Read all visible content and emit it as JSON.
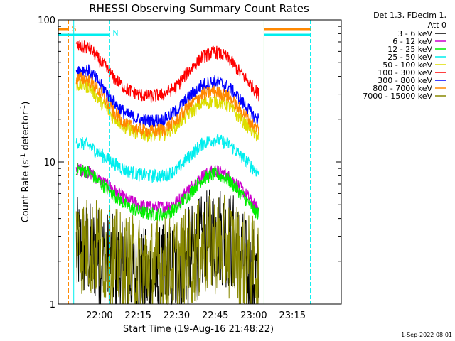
{
  "chart_data": {
    "type": "line",
    "title": "RHESSI Observing Summary Count Rates",
    "xlabel": "Start Time (19-Aug-16 21:48:22)",
    "ylabel_main": "Count Rate (s",
    "ylabel_exp1": "-1",
    "ylabel_mid": " detector",
    "ylabel_exp2": "-1",
    "ylabel_end": ")",
    "yscale": "log",
    "ylim": [
      1,
      100
    ],
    "xlim_minutes": [
      -16,
      94
    ],
    "xticks": [
      {
        "m": 0,
        "label": "22:00"
      },
      {
        "m": 15,
        "label": "22:15"
      },
      {
        "m": 30,
        "label": "22:30"
      },
      {
        "m": 45,
        "label": "22:45"
      },
      {
        "m": 60,
        "label": "23:00"
      },
      {
        "m": 75,
        "label": "23:15"
      }
    ],
    "yticks": [
      {
        "v": 1,
        "label": "1"
      },
      {
        "v": 10,
        "label": "10"
      },
      {
        "v": 100,
        "label": "100"
      }
    ],
    "legend_header": [
      "Det 1,3, FDecim 1,",
      "Att 0"
    ],
    "series": [
      {
        "name": "3 - 6 keV",
        "color": "#000000",
        "noisy": true,
        "points": [
          [
            -9,
            2.5
          ],
          [
            0,
            2.2
          ],
          [
            10,
            1.6
          ],
          [
            20,
            1.5
          ],
          [
            30,
            1.7
          ],
          [
            40,
            2.6
          ],
          [
            46,
            3.2
          ],
          [
            52,
            2.7
          ],
          [
            58,
            1.6
          ],
          [
            62,
            1.5
          ]
        ]
      },
      {
        "name": "6 - 12 keV",
        "color": "#cc00cc",
        "points": [
          [
            -9,
            9
          ],
          [
            -4,
            8.5
          ],
          [
            0,
            7.5
          ],
          [
            5,
            6.5
          ],
          [
            10,
            5.5
          ],
          [
            15,
            5.0
          ],
          [
            20,
            4.8
          ],
          [
            25,
            4.8
          ],
          [
            30,
            5.2
          ],
          [
            35,
            6.5
          ],
          [
            40,
            8.0
          ],
          [
            45,
            8.8
          ],
          [
            50,
            8.0
          ],
          [
            55,
            6.5
          ],
          [
            60,
            5.0
          ],
          [
            62,
            4.6
          ]
        ]
      },
      {
        "name": "12 - 25 keV",
        "color": "#00ee00",
        "points": [
          [
            -9,
            9
          ],
          [
            -4,
            8.5
          ],
          [
            0,
            7.2
          ],
          [
            5,
            6.0
          ],
          [
            10,
            5.0
          ],
          [
            15,
            4.5
          ],
          [
            20,
            4.3
          ],
          [
            25,
            4.3
          ],
          [
            30,
            4.7
          ],
          [
            35,
            6.0
          ],
          [
            40,
            7.6
          ],
          [
            45,
            8.3
          ],
          [
            50,
            7.5
          ],
          [
            55,
            6.0
          ],
          [
            60,
            4.6
          ],
          [
            62,
            4.3
          ]
        ]
      },
      {
        "name": "25 - 50 keV",
        "color": "#00eeee",
        "points": [
          [
            -9,
            14
          ],
          [
            -4,
            13
          ],
          [
            0,
            11.5
          ],
          [
            5,
            10
          ],
          [
            10,
            8.8
          ],
          [
            15,
            8.2
          ],
          [
            20,
            8.0
          ],
          [
            25,
            8.0
          ],
          [
            30,
            8.8
          ],
          [
            35,
            11
          ],
          [
            40,
            13.5
          ],
          [
            45,
            14.5
          ],
          [
            50,
            13.5
          ],
          [
            55,
            11
          ],
          [
            60,
            9
          ],
          [
            62,
            8.4
          ]
        ]
      },
      {
        "name": "50 - 100 keV",
        "color": "#dddd00",
        "points": [
          [
            -9,
            35
          ],
          [
            -4,
            34
          ],
          [
            0,
            27
          ],
          [
            5,
            21
          ],
          [
            10,
            17.5
          ],
          [
            15,
            16
          ],
          [
            20,
            15.5
          ],
          [
            25,
            15.8
          ],
          [
            30,
            18
          ],
          [
            35,
            22
          ],
          [
            40,
            26
          ],
          [
            45,
            27
          ],
          [
            50,
            25
          ],
          [
            55,
            20
          ],
          [
            60,
            16
          ],
          [
            62,
            15
          ]
        ]
      },
      {
        "name": "100 - 300 keV",
        "color": "#ff0000",
        "points": [
          [
            -9,
            65
          ],
          [
            -4,
            64
          ],
          [
            0,
            52
          ],
          [
            5,
            40
          ],
          [
            10,
            33
          ],
          [
            15,
            30
          ],
          [
            20,
            29
          ],
          [
            25,
            30
          ],
          [
            30,
            34
          ],
          [
            35,
            44
          ],
          [
            40,
            55
          ],
          [
            45,
            60
          ],
          [
            50,
            54
          ],
          [
            55,
            42
          ],
          [
            60,
            33
          ],
          [
            62,
            30
          ]
        ]
      },
      {
        "name": "300 - 800 keV",
        "color": "#0000ff",
        "points": [
          [
            -9,
            45
          ],
          [
            -4,
            44
          ],
          [
            0,
            36
          ],
          [
            5,
            27
          ],
          [
            10,
            22
          ],
          [
            15,
            20
          ],
          [
            20,
            19.5
          ],
          [
            25,
            20
          ],
          [
            30,
            23
          ],
          [
            35,
            29
          ],
          [
            40,
            35
          ],
          [
            45,
            37
          ],
          [
            50,
            34
          ],
          [
            55,
            27
          ],
          [
            60,
            21
          ],
          [
            62,
            20
          ]
        ]
      },
      {
        "name": "800 - 7000 keV",
        "color": "#ff8800",
        "points": [
          [
            -9,
            39
          ],
          [
            -4,
            38
          ],
          [
            0,
            31
          ],
          [
            5,
            23
          ],
          [
            10,
            18.5
          ],
          [
            15,
            17
          ],
          [
            20,
            16.5
          ],
          [
            25,
            17
          ],
          [
            30,
            19.5
          ],
          [
            35,
            25
          ],
          [
            40,
            30
          ],
          [
            45,
            31.5
          ],
          [
            50,
            29
          ],
          [
            55,
            23
          ],
          [
            60,
            18
          ],
          [
            62,
            17
          ]
        ]
      },
      {
        "name": "7000 - 15000 keV",
        "color": "#888800",
        "noisy": true,
        "points": [
          [
            -9,
            2.7
          ],
          [
            0,
            2.4
          ],
          [
            10,
            1.9
          ],
          [
            20,
            1.8
          ],
          [
            30,
            1.9
          ],
          [
            40,
            2.4
          ],
          [
            46,
            2.7
          ],
          [
            52,
            2.4
          ],
          [
            58,
            1.9
          ],
          [
            62,
            1.8
          ]
        ]
      }
    ],
    "flags": [
      {
        "code": "S",
        "color": "#ff8800",
        "bar_m": [
          -16,
          -12
        ],
        "line_m": -12
      },
      {
        "code": "N",
        "color": "#00eeee",
        "bar_m": [
          -16,
          4
        ],
        "line_m": 4
      }
    ],
    "other_marks": [
      {
        "kind": "vline",
        "m": -10,
        "color": "#00eeee"
      },
      {
        "kind": "vline",
        "m": 64,
        "color": "#00ee00"
      },
      {
        "kind": "vline",
        "m": 82,
        "color": "#00eeee",
        "dashed": true
      },
      {
        "kind": "hbar",
        "m": [
          64,
          82
        ],
        "level": "top",
        "color": "#ff8800"
      },
      {
        "kind": "hbar",
        "m": [
          64,
          82
        ],
        "level": "second",
        "color": "#00eeee"
      }
    ],
    "timestamp": "1-Sep-2022 08:01"
  }
}
